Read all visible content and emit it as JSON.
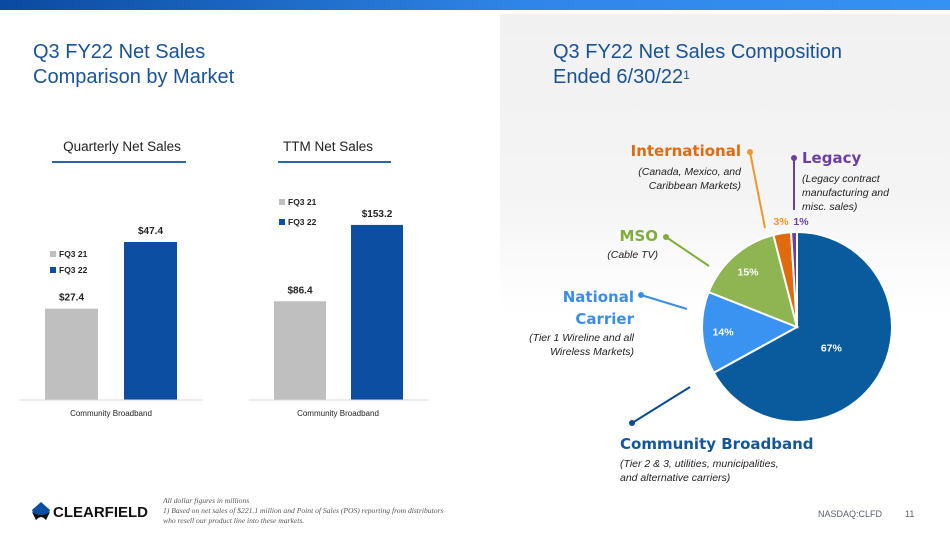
{
  "header": {
    "left_title_line1": "Q3 FY22 Net Sales",
    "left_title_line2": "Comparison by Market",
    "right_title_line1": "Q3 FY22 Net Sales Composition",
    "right_title_line2": "Ended 6/30/22",
    "right_title_sup": "1"
  },
  "colors": {
    "accent": "#1a5294",
    "fq3_21": "#bfbfbf",
    "fq3_22": "#0b4ea2",
    "community_broadband": "#0a5a9e",
    "national_carrier": "#3a93f0",
    "mso": "#8fb552",
    "international": "#e06a10",
    "legacy": "#6b3fa0"
  },
  "chart_data": [
    {
      "type": "bar",
      "title": "Quarterly Net Sales",
      "categories": [
        "Community Broadband"
      ],
      "series": [
        {
          "name": "FQ3 21",
          "values": [
            27.4
          ],
          "labels": [
            "$27.4"
          ]
        },
        {
          "name": "FQ3 22",
          "values": [
            47.4
          ],
          "labels": [
            "$47.4"
          ]
        }
      ],
      "ylim": [
        0,
        60
      ],
      "legend": "left",
      "grid": false,
      "xlabel": "",
      "ylabel": ""
    },
    {
      "type": "bar",
      "title": "TTM Net Sales",
      "categories": [
        "Community Broadband"
      ],
      "series": [
        {
          "name": "FQ3 21",
          "values": [
            86.4
          ],
          "labels": [
            "$86.4"
          ]
        },
        {
          "name": "FQ3 22",
          "values": [
            153.2
          ],
          "labels": [
            "$153.2"
          ]
        }
      ],
      "ylim": [
        0,
        175
      ],
      "legend": "top-left",
      "grid": false,
      "xlabel": "",
      "ylabel": ""
    },
    {
      "type": "pie",
      "title": "Q3 FY22 Net Sales Composition Ended 6/30/22",
      "slices": [
        {
          "name": "Community Broadband",
          "value": 67,
          "label": "67%",
          "description": "(Tier 2 & 3, utilities, municipalities, and alternative carriers)",
          "desc_lines": [
            "(Tier 2 & 3, utilities, municipalities,",
            "and alternative carriers)"
          ]
        },
        {
          "name": "National Carrier",
          "name_lines": [
            "National",
            "Carrier"
          ],
          "value": 14,
          "label": "14%",
          "description": "(Tier 1 Wireline and all Wireless Markets)",
          "desc_lines": [
            "(Tier 1 Wireline and all",
            "Wireless Markets)"
          ]
        },
        {
          "name": "MSO",
          "value": 15,
          "label": "15%",
          "description": "(Cable TV)",
          "desc_lines": [
            "(Cable TV)"
          ]
        },
        {
          "name": "International",
          "value": 3,
          "label": "3%",
          "description": "(Canada, Mexico, and Caribbean Markets)",
          "desc_lines": [
            "(Canada, Mexico, and",
            "Caribbean Markets)"
          ]
        },
        {
          "name": "Legacy",
          "value": 1,
          "label": "1%",
          "description": "(Legacy contract manufacturing and misc. sales)",
          "desc_lines": [
            "(Legacy contract",
            "manufacturing and",
            "misc. sales)"
          ]
        }
      ]
    }
  ],
  "footer": {
    "note_line1": "All dollar figures in millions",
    "note_line2": "1) Based on net sales of $221.1 million and Point of Sales (POS) reporting from distributors",
    "note_line3": "who resell our product line into these markets.",
    "logo_text": "CLEARFIELD",
    "ticker": "NASDAQ:CLFD",
    "page_number": "11"
  }
}
